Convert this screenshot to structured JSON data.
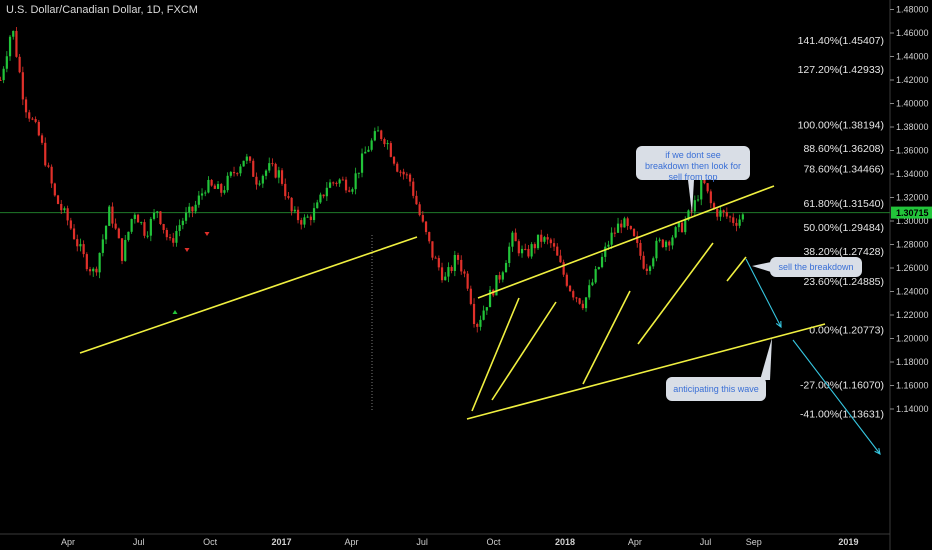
{
  "title": "U.S. Dollar/Canadian Dollar, 1D, FXCM",
  "current_price": "1.30715",
  "colors": {
    "background": "#000000",
    "up": "#22c43a",
    "down": "#e0302a",
    "trendline": "#f0f040",
    "arrow": "#36c6e0",
    "current_price_line": "#1f7a2a",
    "price_tag": "#22c43a"
  },
  "annotations": {
    "bubble_top": "if we dont see breakdown then look for sell from top",
    "bubble_right": "sell the breakdown",
    "bubble_bottom": "anticipating this wave"
  },
  "chart_data": {
    "type": "candlestick",
    "x_axis_labels": [
      "Apr",
      "Jul",
      "Oct",
      "2017",
      "Apr",
      "Jul",
      "Oct",
      "2018",
      "Apr",
      "Jul",
      "Sep",
      "2019"
    ],
    "y_axis_labels": [
      "1.48000",
      "1.46000",
      "1.44000",
      "1.42000",
      "1.40000",
      "1.38000",
      "1.36000",
      "1.34000",
      "1.32000",
      "1.30000",
      "1.28000",
      "1.26000",
      "1.24000",
      "1.22000",
      "1.20000",
      "1.18000",
      "1.16000",
      "1.14000"
    ],
    "ylim": [
      1.135,
      1.485
    ],
    "fib_levels": [
      {
        "label": "141.40%(1.45407)",
        "value": 1.45407
      },
      {
        "label": "127.20%(1.42933)",
        "value": 1.42933
      },
      {
        "label": "100.00%(1.38194)",
        "value": 1.38194
      },
      {
        "label": "88.60%(1.36208)",
        "value": 1.36208
      },
      {
        "label": "78.60%(1.34466)",
        "value": 1.34466
      },
      {
        "label": "61.80%(1.31540)",
        "value": 1.3154
      },
      {
        "label": "50.00%(1.29484)",
        "value": 1.29484
      },
      {
        "label": "38.20%(1.27428)",
        "value": 1.27428
      },
      {
        "label": "23.60%(1.24885)",
        "value": 1.24885
      },
      {
        "label": "0.00%(1.20773)",
        "value": 1.20773
      },
      {
        "label": "-27.00%(1.16070)",
        "value": 1.1607
      },
      {
        "label": "-41.00%(1.13631)",
        "value": 1.13631
      }
    ],
    "price_path": [
      [
        "2016-01-05",
        1.42
      ],
      [
        "2016-01-20",
        1.466
      ],
      [
        "2016-02-05",
        1.4
      ],
      [
        "2016-02-25",
        1.37
      ],
      [
        "2016-03-15",
        1.32
      ],
      [
        "2016-04-01",
        1.3
      ],
      [
        "2016-04-20",
        1.27
      ],
      [
        "2016-05-05",
        1.255
      ],
      [
        "2016-05-25",
        1.31
      ],
      [
        "2016-06-10",
        1.27
      ],
      [
        "2016-06-25",
        1.31
      ],
      [
        "2016-07-10",
        1.29
      ],
      [
        "2016-07-25",
        1.31
      ],
      [
        "2016-08-10",
        1.28
      ],
      [
        "2016-08-25",
        1.3
      ],
      [
        "2016-09-10",
        1.31
      ],
      [
        "2016-09-25",
        1.33
      ],
      [
        "2016-10-15",
        1.325
      ],
      [
        "2016-10-30",
        1.34
      ],
      [
        "2016-11-15",
        1.355
      ],
      [
        "2016-11-30",
        1.335
      ],
      [
        "2016-12-15",
        1.345
      ],
      [
        "2016-12-30",
        1.34
      ],
      [
        "2017-01-15",
        1.305
      ],
      [
        "2017-01-31",
        1.3
      ],
      [
        "2017-02-15",
        1.31
      ],
      [
        "2017-02-28",
        1.33
      ],
      [
        "2017-03-15",
        1.335
      ],
      [
        "2017-04-01",
        1.33
      ],
      [
        "2017-04-20",
        1.36
      ],
      [
        "2017-05-05",
        1.375
      ],
      [
        "2017-05-15",
        1.37
      ],
      [
        "2017-05-31",
        1.345
      ],
      [
        "2017-06-15",
        1.335
      ],
      [
        "2017-06-30",
        1.3
      ],
      [
        "2017-07-15",
        1.27
      ],
      [
        "2017-07-31",
        1.25
      ],
      [
        "2017-08-15",
        1.27
      ],
      [
        "2017-08-30",
        1.245
      ],
      [
        "2017-09-08",
        1.21
      ],
      [
        "2017-09-25",
        1.235
      ],
      [
        "2017-10-10",
        1.255
      ],
      [
        "2017-10-25",
        1.285
      ],
      [
        "2017-11-10",
        1.27
      ],
      [
        "2017-11-30",
        1.285
      ],
      [
        "2017-12-15",
        1.28
      ],
      [
        "2017-12-30",
        1.255
      ],
      [
        "2018-01-10",
        1.24
      ],
      [
        "2018-01-25",
        1.23
      ],
      [
        "2018-02-10",
        1.255
      ],
      [
        "2018-02-28",
        1.285
      ],
      [
        "2018-03-15",
        1.3
      ],
      [
        "2018-03-30",
        1.285
      ],
      [
        "2018-04-15",
        1.26
      ],
      [
        "2018-04-30",
        1.28
      ],
      [
        "2018-05-15",
        1.285
      ],
      [
        "2018-05-31",
        1.295
      ],
      [
        "2018-06-15",
        1.31
      ],
      [
        "2018-06-27",
        1.335
      ],
      [
        "2018-07-10",
        1.31
      ],
      [
        "2018-07-25",
        1.305
      ],
      [
        "2018-08-08",
        1.3
      ],
      [
        "2018-08-20",
        1.305
      ]
    ]
  }
}
